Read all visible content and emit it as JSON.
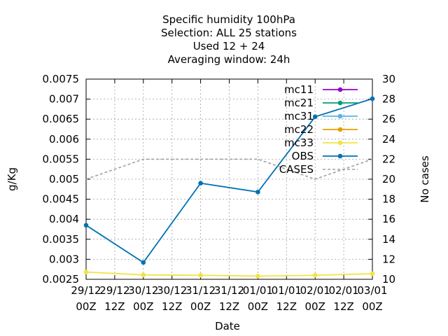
{
  "chart_data": {
    "type": "line",
    "title_lines": [
      "Specific humidity 100hPa",
      "Selection: ALL      25 stations",
      "Used  12 + 24",
      "Averaging window: 24h"
    ],
    "xlabel": "Date",
    "ylabel": "g/Kg",
    "y2label": "No cases",
    "x_ticks": [
      {
        "line1": "29/12",
        "line2": "00Z"
      },
      {
        "line1": "29/12",
        "line2": "12Z"
      },
      {
        "line1": "30/12",
        "line2": "00Z"
      },
      {
        "line1": "30/12",
        "line2": "12Z"
      },
      {
        "line1": "31/12",
        "line2": "00Z"
      },
      {
        "line1": "31/12",
        "line2": "12Z"
      },
      {
        "line1": "01/01",
        "line2": "00Z"
      },
      {
        "line1": "01/01",
        "line2": "12Z"
      },
      {
        "line1": "02/01",
        "line2": "00Z"
      },
      {
        "line1": "02/01",
        "line2": "12Z"
      },
      {
        "line1": "03/01",
        "line2": "00Z"
      }
    ],
    "ylim": [
      0.0025,
      0.0075
    ],
    "y_ticks": [
      "0.0025",
      "0.003",
      "0.0035",
      "0.004",
      "0.0045",
      "0.005",
      "0.0055",
      "0.006",
      "0.0065",
      "0.007",
      "0.0075"
    ],
    "y2lim": [
      10,
      30
    ],
    "y2_ticks": [
      "10",
      "12",
      "14",
      "16",
      "18",
      "20",
      "22",
      "24",
      "26",
      "28",
      "30"
    ],
    "grid": true,
    "legend_position": "top-right",
    "series": [
      {
        "name": "mc11",
        "color": "#9400d3",
        "axis": "y",
        "style": "line-points",
        "x": [],
        "y": []
      },
      {
        "name": "mc21",
        "color": "#009e73",
        "axis": "y",
        "style": "line-points",
        "x": [],
        "y": []
      },
      {
        "name": "mc31",
        "color": "#56b4e9",
        "axis": "y",
        "style": "line-points",
        "x": [],
        "y": []
      },
      {
        "name": "mc22",
        "color": "#e69f00",
        "axis": "y",
        "style": "line-points",
        "x": [],
        "y": []
      },
      {
        "name": "mc33",
        "color": "#f0e442",
        "axis": "y",
        "style": "line-points",
        "x": [
          0,
          2,
          4,
          6,
          8,
          10
        ],
        "y": [
          0.00268,
          0.00261,
          0.0026,
          0.00258,
          0.0026,
          0.00264
        ]
      },
      {
        "name": "OBS",
        "color": "#0072b2",
        "axis": "y",
        "style": "line-points",
        "x": [
          0,
          2,
          4,
          6,
          8,
          10
        ],
        "y": [
          0.00385,
          0.00292,
          0.0049,
          0.00468,
          0.00656,
          0.00701
        ]
      },
      {
        "name": "CASES",
        "color": "#a0a0a0",
        "axis": "y2",
        "style": "dashed",
        "x": [
          0,
          2,
          4,
          6,
          8,
          10
        ],
        "y": [
          20,
          22,
          22,
          22,
          20,
          22
        ]
      }
    ]
  }
}
